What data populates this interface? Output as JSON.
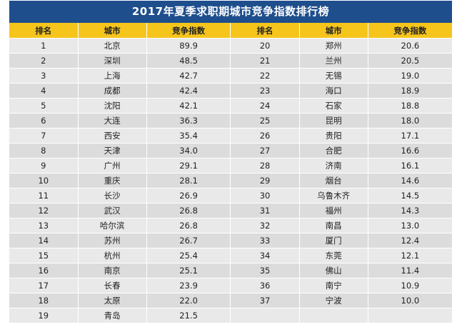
{
  "title": "2017年夏季求职期城市竞争指数排行榜",
  "colors": {
    "title_bg": "#1f4e8c",
    "header_bg": "#f6c51b",
    "row_odd": "#e9e9e9",
    "row_even": "#dcdcdc"
  },
  "headers": [
    "排名",
    "城市",
    "竞争指数",
    "排名",
    "城市",
    "竞争指数"
  ],
  "rows": [
    [
      "1",
      "北京",
      "89.9",
      "20",
      "郑州",
      "20.6"
    ],
    [
      "2",
      "深圳",
      "48.5",
      "21",
      "兰州",
      "20.5"
    ],
    [
      "3",
      "上海",
      "42.7",
      "22",
      "无锡",
      "19.0"
    ],
    [
      "4",
      "成都",
      "42.4",
      "23",
      "海口",
      "18.9"
    ],
    [
      "5",
      "沈阳",
      "42.1",
      "24",
      "石家",
      "18.8"
    ],
    [
      "6",
      "大连",
      "36.3",
      "25",
      "昆明",
      "18.0"
    ],
    [
      "7",
      "西安",
      "35.4",
      "26",
      "贵阳",
      "17.1"
    ],
    [
      "8",
      "天津",
      "34.0",
      "27",
      "合肥",
      "16.6"
    ],
    [
      "9",
      "广州",
      "29.1",
      "28",
      "济南",
      "16.1"
    ],
    [
      "10",
      "重庆",
      "28.1",
      "29",
      "烟台",
      "14.6"
    ],
    [
      "11",
      "长沙",
      "26.9",
      "30",
      "乌鲁木齐",
      "14.5"
    ],
    [
      "12",
      "武汉",
      "26.8",
      "31",
      "福州",
      "14.3"
    ],
    [
      "13",
      "哈尔滨",
      "26.8",
      "32",
      "南昌",
      "13.0"
    ],
    [
      "14",
      "苏州",
      "26.7",
      "33",
      "厦门",
      "12.4"
    ],
    [
      "15",
      "杭州",
      "25.4",
      "34",
      "东莞",
      "12.1"
    ],
    [
      "16",
      "南京",
      "25.1",
      "35",
      "佛山",
      "11.4"
    ],
    [
      "17",
      "长春",
      "23.9",
      "36",
      "南宁",
      "10.9"
    ],
    [
      "18",
      "太原",
      "22.0",
      "37",
      "宁波",
      "10.0"
    ],
    [
      "19",
      "青岛",
      "21.5",
      "",
      "",
      ""
    ]
  ]
}
